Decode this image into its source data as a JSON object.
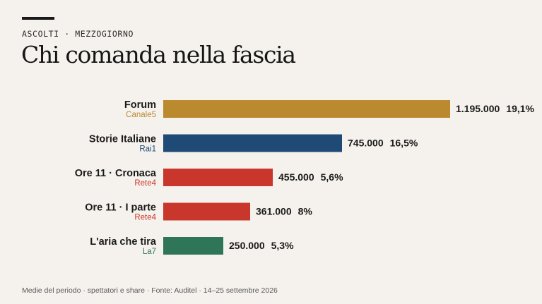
{
  "header": {
    "kicker": "ASCOLTI · MEZZOGIORNO",
    "title": "Chi comanda nella fascia"
  },
  "footer": {
    "source": "Medie del periodo · spettatori e share · Fonte: Auditel · 14–25 settembre 2026"
  },
  "chart_data": {
    "type": "bar",
    "orientation": "horizontal",
    "categories": [
      "Forum",
      "Storie Italiane",
      "Ore 11 · Cronaca",
      "Ore 11 · I parte",
      "L'aria che tira"
    ],
    "channels": [
      "Canale5",
      "Rai1",
      "Rete4",
      "Rete4",
      "La7"
    ],
    "values": [
      1195000,
      745000,
      455000,
      361000,
      250000
    ],
    "value_labels": [
      "1.195.000",
      "745.000",
      "455.000",
      "361.000",
      "250.000"
    ],
    "share_labels": [
      "19,1%",
      "16,5%",
      "5,6%",
      "8%",
      "5,3%"
    ],
    "colors": [
      "#bb8a2e",
      "#1f4a75",
      "#c9372c",
      "#c9372c",
      "#2f7558"
    ],
    "xlim": [
      0,
      1195000
    ],
    "grid": false,
    "legend": "none"
  }
}
